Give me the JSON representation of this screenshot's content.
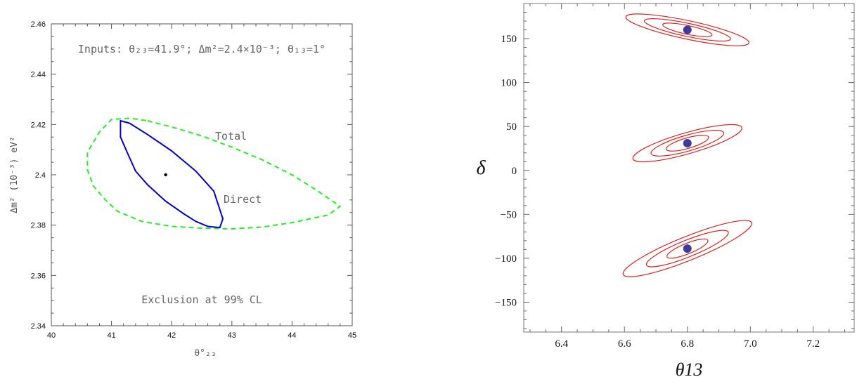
{
  "chart_data": [
    {
      "type": "line",
      "title": "Inputs: θ₂₃=41.9°; Δm²=2.4×10⁻³; θ₁₃=1°",
      "xlabel": "θ°₂₃",
      "ylabel": "Δm² (10⁻³) eV²",
      "xlim": [
        40,
        45
      ],
      "ylim": [
        2.34,
        2.46
      ],
      "xticks": [
        "40",
        "41",
        "42",
        "43",
        "44",
        "45"
      ],
      "yticks": [
        "2.34",
        "2.36",
        "2.38",
        "2.4",
        "2.42",
        "2.44",
        "2.46"
      ],
      "grid": false,
      "annotations": {
        "total": "Total",
        "direct": "Direct",
        "exclusion": "Exclusion at 99% CL"
      },
      "best_fit": {
        "x": 41.9,
        "y": 2.4
      },
      "series": [
        {
          "name": "Total",
          "style": "dashed",
          "color": "#22ee22",
          "x": [
            41.6,
            42.0,
            42.5,
            43.0,
            43.5,
            44.0,
            44.4,
            44.8,
            44.6,
            44.0,
            43.5,
            43.0,
            42.5,
            42.0,
            41.5,
            41.1,
            40.9,
            40.7,
            40.6,
            40.6,
            40.8,
            41.0,
            41.3,
            41.6
          ],
          "y": [
            2.4215,
            2.419,
            2.4155,
            2.411,
            2.406,
            2.4,
            2.394,
            2.3875,
            2.384,
            2.381,
            2.3792,
            2.3785,
            2.3788,
            2.3795,
            2.3815,
            2.3855,
            2.39,
            2.3955,
            2.402,
            2.409,
            2.417,
            2.422,
            2.4225,
            2.4215
          ]
        },
        {
          "name": "Direct",
          "style": "solid",
          "color": "#0000cc",
          "x": [
            41.3,
            41.6,
            42.0,
            42.4,
            42.7,
            42.85,
            42.8,
            42.6,
            42.4,
            42.2,
            41.9,
            41.6,
            41.4,
            41.25,
            41.15,
            41.15,
            41.3
          ],
          "y": [
            2.4205,
            2.416,
            2.4095,
            2.4015,
            2.3935,
            2.3825,
            2.379,
            2.3795,
            2.3815,
            2.3845,
            2.3895,
            2.396,
            2.4015,
            2.4095,
            2.415,
            2.4215,
            2.4205
          ]
        }
      ]
    },
    {
      "type": "line",
      "xlabel": "θ13",
      "ylabel": "δ",
      "xlim": [
        6.28,
        7.33
      ],
      "ylim": [
        -184,
        190
      ],
      "xticks": [
        6.4,
        6.6,
        6.8,
        7.0,
        7.2
      ],
      "yticks": [
        -150,
        -100,
        -50,
        0,
        50,
        100,
        150
      ],
      "grid": false,
      "contour_color": "#dd2222",
      "points_color": "#3d3d99",
      "points": [
        {
          "x": 6.8,
          "y": 160
        },
        {
          "x": 6.8,
          "y": 31
        },
        {
          "x": 6.8,
          "y": -89
        }
      ],
      "contours": [
        {
          "x0": 6.8,
          "y0": 160,
          "levels": [
            {
              "a": 0.08,
              "b": 5,
              "rot": 12
            },
            {
              "a": 0.14,
              "b": 7.5,
              "rot": 12
            },
            {
              "a": 0.2,
              "b": 10.5,
              "rot": 12
            }
          ]
        },
        {
          "x0": 6.8,
          "y0": 31,
          "levels": [
            {
              "a": 0.07,
              "b": 6,
              "rot": -16
            },
            {
              "a": 0.12,
              "b": 9,
              "rot": -16
            },
            {
              "a": 0.18,
              "b": 12,
              "rot": -16
            }
          ]
        },
        {
          "x0": 6.8,
          "y0": -89,
          "levels": [
            {
              "a": 0.07,
              "b": 6,
              "rot": -22
            },
            {
              "a": 0.14,
              "b": 9.5,
              "rot": -22
            },
            {
              "a": 0.22,
              "b": 13.5,
              "rot": -22
            }
          ]
        }
      ]
    }
  ]
}
